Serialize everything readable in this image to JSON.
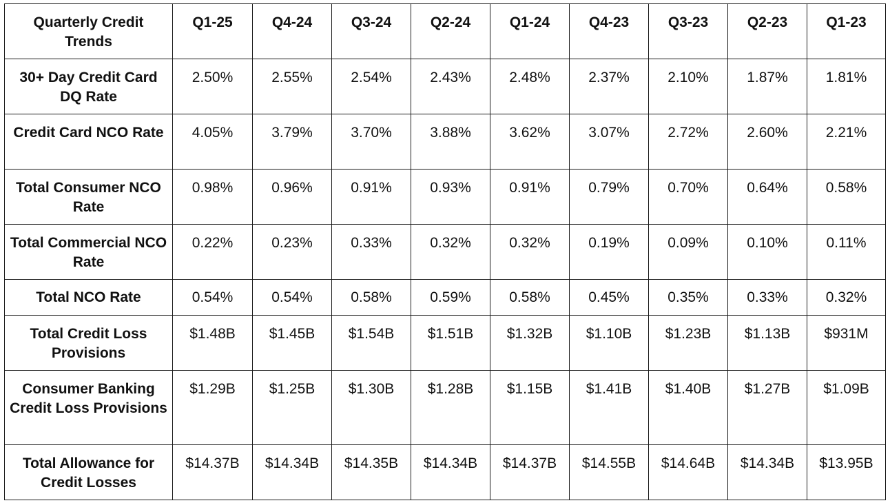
{
  "table": {
    "corner_label": "Quarterly Credit Trends",
    "columns": [
      "Q1-25",
      "Q4-24",
      "Q3-24",
      "Q2-24",
      "Q1-24",
      "Q4-23",
      "Q3-23",
      "Q2-23",
      "Q1-23"
    ],
    "rows": [
      {
        "label": "30+ Day Credit Card DQ Rate",
        "values": [
          "2.50%",
          "2.55%",
          "2.54%",
          "2.43%",
          "2.48%",
          "2.37%",
          "2.10%",
          "1.87%",
          "1.81%"
        ]
      },
      {
        "label": "Credit Card NCO Rate",
        "values": [
          "4.05%",
          "3.79%",
          "3.70%",
          "3.88%",
          "3.62%",
          "3.07%",
          "2.72%",
          "2.60%",
          "2.21%"
        ]
      },
      {
        "label": "Total Consumer NCO Rate",
        "values": [
          "0.98%",
          "0.96%",
          "0.91%",
          "0.93%",
          "0.91%",
          "0.79%",
          "0.70%",
          "0.64%",
          "0.58%"
        ]
      },
      {
        "label": "Total Commercial NCO Rate",
        "values": [
          "0.22%",
          "0.23%",
          "0.33%",
          "0.32%",
          "0.32%",
          "0.19%",
          "0.09%",
          "0.10%",
          "0.11%"
        ]
      },
      {
        "label": "Total NCO Rate",
        "values": [
          "0.54%",
          "0.54%",
          "0.58%",
          "0.59%",
          "0.58%",
          "0.45%",
          "0.35%",
          "0.33%",
          "0.32%"
        ]
      },
      {
        "label": "Total Credit Loss Provisions",
        "values": [
          "$1.48B",
          "$1.45B",
          "$1.54B",
          "$1.51B",
          "$1.32B",
          "$1.10B",
          "$1.23B",
          "$1.13B",
          "$931M"
        ]
      },
      {
        "label": "Consumer Banking Credit Loss Provisions",
        "values": [
          "$1.29B",
          "$1.25B",
          "$1.30B",
          "$1.28B",
          "$1.15B",
          "$1.41B",
          "$1.40B",
          "$1.27B",
          "$1.09B"
        ]
      },
      {
        "label": "Total Allowance for Credit Losses",
        "values": [
          "$14.37B",
          "$14.34B",
          "$14.35B",
          "$14.34B",
          "$14.37B",
          "$14.55B",
          "$14.64B",
          "$14.34B",
          "$13.95B"
        ]
      }
    ]
  }
}
